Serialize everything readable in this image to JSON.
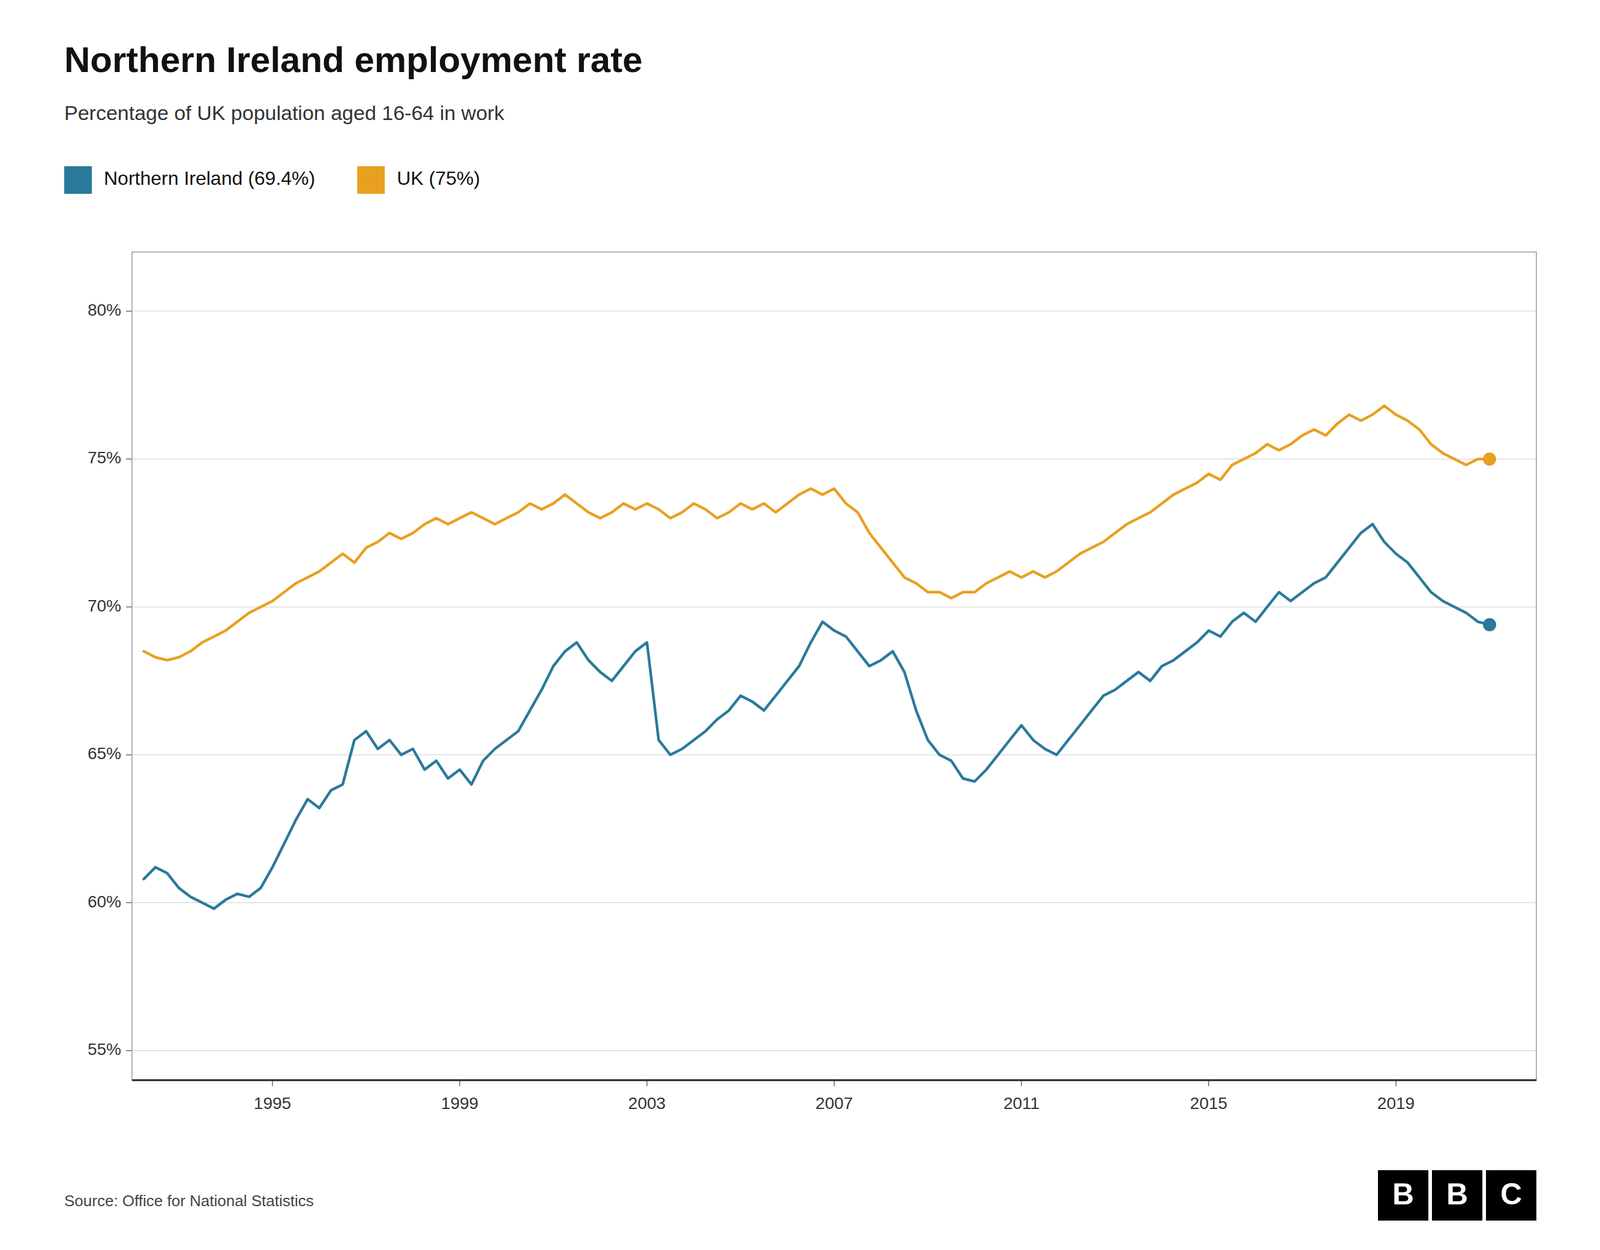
{
  "chart_data": {
    "type": "line",
    "title": "Northern Ireland employment rate",
    "subtitle": "Percentage of UK population aged 16-64 in work",
    "source": "Source: Office for National Statistics",
    "logo": "BBC",
    "legend": "top left",
    "grid": "y",
    "xlim": [
      1992,
      2022
    ],
    "xticks": [
      1995,
      1999,
      2003,
      2007,
      2011,
      2015,
      2019
    ],
    "ylim": [
      54,
      82
    ],
    "yticks": [
      {
        "value": 55,
        "label": "55%"
      },
      {
        "value": 60,
        "label": "60%"
      },
      {
        "value": 65,
        "label": "65%"
      },
      {
        "value": 70,
        "label": "70%"
      },
      {
        "value": 75,
        "label": "75%"
      },
      {
        "value": 80,
        "label": "80%"
      }
    ],
    "x": [
      1992.25,
      1992.5,
      1992.75,
      1993.0,
      1993.25,
      1993.5,
      1993.75,
      1994.0,
      1994.25,
      1994.5,
      1994.75,
      1995.0,
      1995.25,
      1995.5,
      1995.75,
      1996.0,
      1996.25,
      1996.5,
      1996.75,
      1997.0,
      1997.25,
      1997.5,
      1997.75,
      1998.0,
      1998.25,
      1998.5,
      1998.75,
      1999.0,
      1999.25,
      1999.5,
      1999.75,
      2000.0,
      2000.25,
      2000.5,
      2000.75,
      2001.0,
      2001.25,
      2001.5,
      2001.75,
      2002.0,
      2002.25,
      2002.5,
      2002.75,
      2003.0,
      2003.25,
      2003.5,
      2003.75,
      2004.0,
      2004.25,
      2004.5,
      2004.75,
      2005.0,
      2005.25,
      2005.5,
      2005.75,
      2006.0,
      2006.25,
      2006.5,
      2006.75,
      2007.0,
      2007.25,
      2007.5,
      2007.75,
      2008.0,
      2008.25,
      2008.5,
      2008.75,
      2009.0,
      2009.25,
      2009.5,
      2009.75,
      2010.0,
      2010.25,
      2010.5,
      2010.75,
      2011.0,
      2011.25,
      2011.5,
      2011.75,
      2012.0,
      2012.25,
      2012.5,
      2012.75,
      2013.0,
      2013.25,
      2013.5,
      2013.75,
      2014.0,
      2014.25,
      2014.5,
      2014.75,
      2015.0,
      2015.25,
      2015.5,
      2015.75,
      2016.0,
      2016.25,
      2016.5,
      2016.75,
      2017.0,
      2017.25,
      2017.5,
      2017.75,
      2018.0,
      2018.25,
      2018.5,
      2018.75,
      2019.0,
      2019.25,
      2019.5,
      2019.75,
      2020.0,
      2020.25,
      2020.5,
      2020.75,
      2021.0
    ],
    "series": [
      {
        "name": "Northern Ireland (69.4%)",
        "color": "#2b7a9b",
        "values": [
          60.8,
          61.2,
          61.0,
          60.5,
          60.2,
          60.0,
          59.8,
          60.1,
          60.3,
          60.2,
          60.5,
          61.2,
          62.0,
          62.8,
          63.5,
          63.2,
          63.8,
          64.0,
          65.5,
          65.8,
          65.2,
          65.5,
          65.0,
          65.2,
          64.5,
          64.8,
          64.2,
          64.5,
          64.0,
          64.8,
          65.2,
          65.5,
          65.8,
          66.5,
          67.2,
          68.0,
          68.5,
          68.8,
          68.2,
          67.8,
          67.5,
          68.0,
          68.5,
          68.8,
          65.5,
          65.0,
          65.2,
          65.5,
          65.8,
          66.2,
          66.5,
          67.0,
          66.8,
          66.5,
          67.0,
          67.5,
          68.0,
          68.8,
          69.5,
          69.2,
          69.0,
          68.5,
          68.0,
          68.2,
          68.5,
          67.8,
          66.5,
          65.5,
          65.0,
          64.8,
          64.2,
          64.1,
          64.5,
          65.0,
          65.5,
          66.0,
          65.5,
          65.2,
          65.0,
          65.5,
          66.0,
          66.5,
          67.0,
          67.2,
          67.5,
          67.8,
          67.5,
          68.0,
          68.2,
          68.5,
          68.8,
          69.2,
          69.0,
          69.5,
          69.8,
          69.5,
          70.0,
          70.5,
          70.2,
          70.5,
          70.8,
          71.0,
          71.5,
          72.0,
          72.5,
          72.8,
          72.2,
          71.8,
          71.5,
          71.0,
          70.5,
          70.2,
          70.0,
          69.8,
          69.5,
          69.4
        ]
      },
      {
        "name": "UK (75%)",
        "color": "#e8a020",
        "values": [
          68.5,
          68.3,
          68.2,
          68.3,
          68.5,
          68.8,
          69.0,
          69.2,
          69.5,
          69.8,
          70.0,
          70.2,
          70.5,
          70.8,
          71.0,
          71.2,
          71.5,
          71.8,
          71.5,
          72.0,
          72.2,
          72.5,
          72.3,
          72.5,
          72.8,
          73.0,
          72.8,
          73.0,
          73.2,
          73.0,
          72.8,
          73.0,
          73.2,
          73.5,
          73.3,
          73.5,
          73.8,
          73.5,
          73.2,
          73.0,
          73.2,
          73.5,
          73.3,
          73.5,
          73.3,
          73.0,
          73.2,
          73.5,
          73.3,
          73.0,
          73.2,
          73.5,
          73.3,
          73.5,
          73.2,
          73.5,
          73.8,
          74.0,
          73.8,
          74.0,
          73.5,
          73.2,
          72.5,
          72.0,
          71.5,
          71.0,
          70.8,
          70.5,
          70.5,
          70.3,
          70.5,
          70.5,
          70.8,
          71.0,
          71.2,
          71.0,
          71.2,
          71.0,
          71.2,
          71.5,
          71.8,
          72.0,
          72.2,
          72.5,
          72.8,
          73.0,
          73.2,
          73.5,
          73.8,
          74.0,
          74.2,
          74.5,
          74.3,
          74.8,
          75.0,
          75.2,
          75.5,
          75.3,
          75.5,
          75.8,
          76.0,
          75.8,
          76.2,
          76.5,
          76.3,
          76.5,
          76.8,
          76.5,
          76.3,
          76.0,
          75.5,
          75.2,
          75.0,
          74.8,
          75.0,
          75.0
        ]
      }
    ]
  }
}
